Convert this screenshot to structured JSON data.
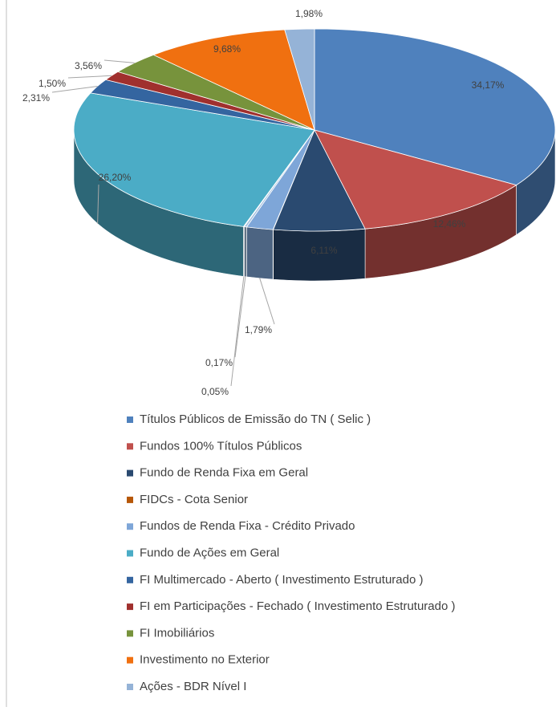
{
  "chart_data": {
    "type": "pie",
    "categories": [
      "Títulos Públicos de Emissão do TN ( Selic )",
      "Fundos  100% Títulos Públicos",
      "Fundo de Renda Fixa em Geral",
      "FIDCs - Cota Senior",
      "Fundos de Renda Fixa - Crédito Privado",
      null,
      null,
      "Fundo de Ações em Geral",
      "FI Multimercado - Aberto ( Investimento Estruturado )",
      "FI em Participações - Fechado ( Investimento Estruturado )",
      "FI Imobiliários",
      "Investimento no Exterior",
      "Ações - BDR Nível I"
    ],
    "values": [
      34.17,
      12.46,
      6.11,
      0.02,
      1.79,
      0.17,
      0.05,
      26.2,
      2.31,
      1.5,
      3.56,
      9.68,
      1.98
    ],
    "value_labels": [
      "34,17%",
      "12,46%",
      "6,11%",
      null,
      "1,79%",
      "0,17%",
      "0,05%",
      "26,20%",
      "2,31%",
      "1,50%",
      "3,56%",
      "9,68%",
      "1,98%"
    ],
    "colors": [
      "#4f81bd",
      "#c0504d",
      "#2a4a70",
      "#b65708",
      "#7ea6d8",
      "#a6c1e0",
      "#d0d8e4",
      "#4bacc6",
      "#3465a0",
      "#a0302e",
      "#77933c",
      "#f07010",
      "#95b3d7"
    ]
  }
}
